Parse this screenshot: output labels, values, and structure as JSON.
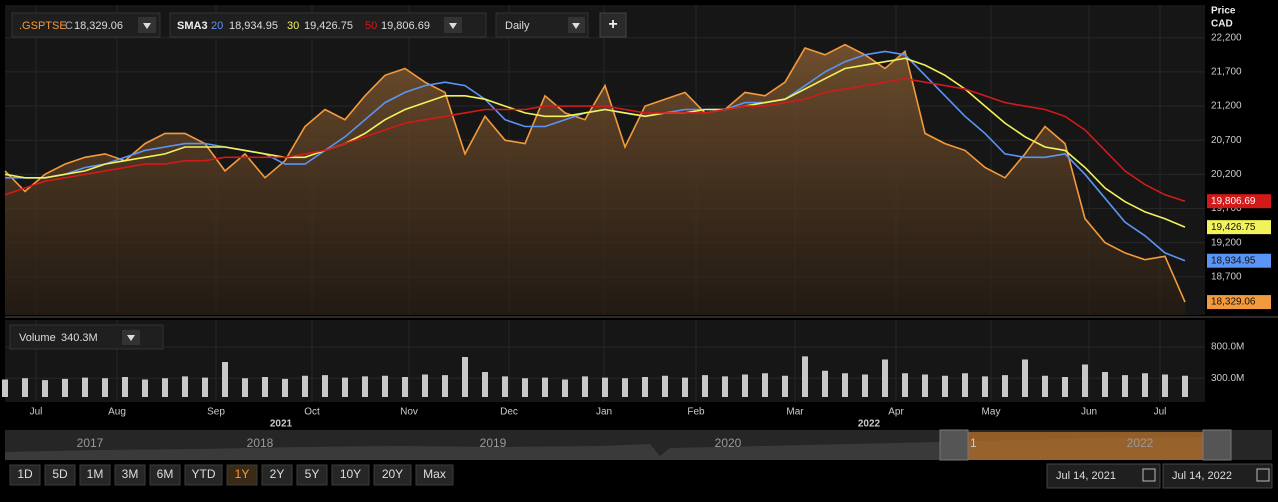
{
  "toolbar": {
    "interval": "Daily",
    "add": "+"
  },
  "chart_data": [
    {
      "type": "line",
      "study": "SMA3",
      "close_prefix": "C",
      "y_label": "Price",
      "y_unit": "CAD",
      "area": true,
      "grid": true,
      "xlim": [
        0,
        59
      ],
      "xticks": [
        {
          "value": 1.55,
          "label": "Jul"
        },
        {
          "value": 5.6,
          "label": "Aug"
        },
        {
          "value": 10.55,
          "label": "Sep"
        },
        {
          "value": 15.35,
          "label": "Oct"
        },
        {
          "value": 20.2,
          "label": "Nov"
        },
        {
          "value": 25.2,
          "label": "Dec"
        },
        {
          "value": 29.95,
          "label": "Jan"
        },
        {
          "value": 34.55,
          "label": "Feb"
        },
        {
          "value": 39.5,
          "label": "Mar"
        },
        {
          "value": 44.55,
          "label": "Apr"
        },
        {
          "value": 49.3,
          "label": "May"
        },
        {
          "value": 54.2,
          "label": "Jun"
        },
        {
          "value": 57.75,
          "label": "Jul"
        }
      ],
      "year_ticks": [
        {
          "value": 13.8,
          "label": "2021"
        },
        {
          "value": 43.2,
          "label": "2022"
        }
      ],
      "ylim": [
        18140,
        22680
      ],
      "yticks": [
        {
          "value": 18700,
          "label": "18,700"
        },
        {
          "value": 19200,
          "label": "19,200"
        },
        {
          "value": 19700,
          "label": "19,700"
        },
        {
          "value": 20200,
          "label": "20,200"
        },
        {
          "value": 20700,
          "label": "20,700"
        },
        {
          "value": 21200,
          "label": "21,200"
        },
        {
          "value": 21700,
          "label": "21,700"
        },
        {
          "value": 22200,
          "label": "22,200"
        }
      ],
      "series": [
        {
          "name": ".GSPTSE",
          "color": "#f39a3c",
          "last_label": "18,329.06",
          "values": [
            20250,
            19950,
            20200,
            20350,
            20450,
            20500,
            20400,
            20650,
            20800,
            20800,
            20650,
            20250,
            20500,
            20150,
            20400,
            20900,
            21150,
            21000,
            21350,
            21650,
            21750,
            21550,
            21400,
            20500,
            21050,
            20700,
            20650,
            21350,
            21100,
            21000,
            21500,
            20600,
            21200,
            21300,
            21400,
            21100,
            21150,
            21400,
            21350,
            21550,
            22050,
            21950,
            22100,
            21950,
            21750,
            22000,
            20800,
            20650,
            20550,
            20300,
            20150,
            20500,
            20900,
            20650,
            19550,
            19200,
            19050,
            18950,
            19000,
            18329.06
          ]
        },
        {
          "name": "20",
          "color": "#5a95f5",
          "last_label": "18,934.95",
          "values": [
            20150,
            20150,
            20150,
            20200,
            20300,
            20350,
            20450,
            20550,
            20600,
            20650,
            20650,
            20600,
            20550,
            20500,
            20350,
            20350,
            20550,
            20750,
            21000,
            21250,
            21400,
            21500,
            21550,
            21500,
            21300,
            21000,
            20900,
            20900,
            21000,
            21100,
            21150,
            21100,
            21050,
            21100,
            21150,
            21150,
            21150,
            21250,
            21250,
            21300,
            21500,
            21700,
            21850,
            21950,
            22000,
            21950,
            21650,
            21350,
            21050,
            20800,
            20500,
            20450,
            20450,
            20500,
            20200,
            19850,
            19500,
            19300,
            19050,
            18934.95
          ]
        },
        {
          "name": "30",
          "color": "#f2f25a",
          "last_label": "19,426.75",
          "values": [
            20200,
            20150,
            20150,
            20200,
            20250,
            20350,
            20400,
            20450,
            20500,
            20600,
            20600,
            20600,
            20550,
            20500,
            20450,
            20450,
            20550,
            20650,
            20800,
            21000,
            21150,
            21250,
            21350,
            21350,
            21300,
            21200,
            21100,
            21050,
            21050,
            21100,
            21150,
            21100,
            21050,
            21100,
            21100,
            21150,
            21150,
            21200,
            21250,
            21300,
            21450,
            21600,
            21750,
            21800,
            21850,
            21900,
            21800,
            21650,
            21450,
            21200,
            20950,
            20750,
            20600,
            20550,
            20300,
            20000,
            19800,
            19650,
            19550,
            19426.75
          ]
        },
        {
          "name": "50",
          "color": "#d21a1a",
          "last_label": "19,806.69",
          "values": [
            19900,
            20000,
            20100,
            20150,
            20200,
            20250,
            20300,
            20350,
            20350,
            20400,
            20400,
            20450,
            20450,
            20450,
            20450,
            20500,
            20550,
            20650,
            20750,
            20850,
            20950,
            21000,
            21050,
            21100,
            21150,
            21150,
            21150,
            21200,
            21200,
            21200,
            21200,
            21150,
            21100,
            21100,
            21100,
            21100,
            21150,
            21200,
            21200,
            21250,
            21300,
            21400,
            21450,
            21500,
            21550,
            21600,
            21550,
            21500,
            21450,
            21350,
            21250,
            21200,
            21150,
            21050,
            20850,
            20550,
            20250,
            20050,
            19900,
            19806.69
          ]
        }
      ]
    },
    {
      "type": "bar",
      "title": "Volume",
      "value_label": "340.3M",
      "color": "#c8c8c8",
      "xlim": [
        0,
        59
      ],
      "ylim": [
        0,
        1200
      ],
      "yticks": [
        {
          "value": 300,
          "label": "300.0M"
        },
        {
          "value": 800,
          "label": "800.0M"
        }
      ],
      "values": [
        280,
        300,
        270,
        290,
        310,
        300,
        320,
        280,
        300,
        330,
        310,
        560,
        300,
        320,
        290,
        340,
        350,
        310,
        330,
        340,
        320,
        360,
        350,
        640,
        400,
        330,
        300,
        310,
        280,
        330,
        310,
        300,
        320,
        340,
        310,
        350,
        330,
        360,
        380,
        340,
        650,
        420,
        380,
        360,
        600,
        380,
        360,
        340,
        380,
        330,
        350,
        600,
        340,
        320,
        520,
        400,
        350,
        380,
        360,
        340.3
      ]
    }
  ],
  "navigator": {
    "years": [
      "2017",
      "2018",
      "2019",
      "2020",
      "2022"
    ],
    "handle_label": "1"
  },
  "ranges": {
    "buttons": [
      "1D",
      "5D",
      "1M",
      "3M",
      "6M",
      "YTD",
      "1Y",
      "2Y",
      "5Y",
      "10Y",
      "20Y",
      "Max"
    ],
    "selected": "1Y"
  },
  "dates": {
    "from": "Jul 14, 2021",
    "to": "Jul 14, 2022"
  }
}
